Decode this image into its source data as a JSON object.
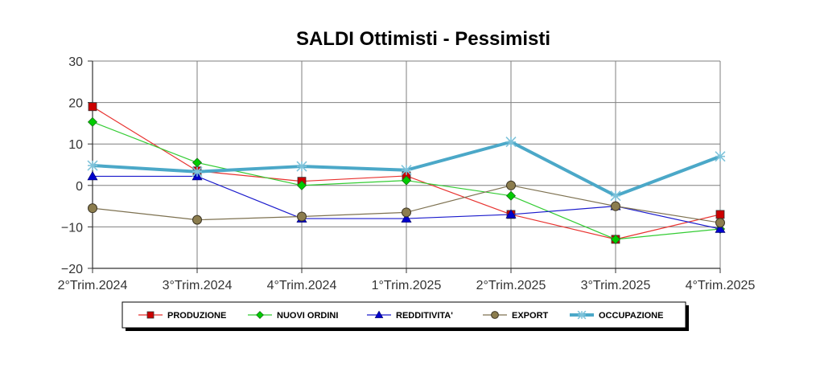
{
  "chart_data": {
    "type": "line",
    "title": "SALDI Ottimisti - Pessimisti",
    "categories": [
      "2°Trim.2024",
      "3°Trim.2024",
      "4°Trim.2024",
      "1°Trim.2025",
      "2°Trim.2025",
      "3°Trim.2025",
      "4°Trim.2025"
    ],
    "ylim": [
      -20,
      30
    ],
    "yticks": [
      30,
      20,
      10,
      0,
      -10,
      -20
    ],
    "ytick_labels": [
      "30",
      "20",
      "10",
      "0",
      "−10",
      "−20"
    ],
    "grid": true,
    "legend_position": "bottom",
    "series": [
      {
        "name": "PRODUZIONE",
        "values": [
          19,
          3.5,
          1,
          2.3,
          -7,
          -13,
          -7
        ],
        "color": "#e8322f",
        "marker": "square",
        "marker_color": "#cc0000"
      },
      {
        "name": "NUOVI ORDINI",
        "values": [
          15.3,
          5.5,
          0,
          1.2,
          -2.5,
          -13,
          -10.5
        ],
        "color": "#33cc33",
        "marker": "diamond",
        "marker_color": "#00cc00"
      },
      {
        "name": "REDDITIVITA'",
        "values": [
          2.2,
          2.2,
          -8,
          -8,
          -7,
          -5,
          -10.5
        ],
        "color": "#1a1acc",
        "marker": "triangle",
        "marker_color": "#0000cc"
      },
      {
        "name": "EXPORT",
        "values": [
          -5.5,
          -8.3,
          -7.5,
          -6.5,
          0,
          -5,
          -9
        ],
        "color": "#7d7150",
        "marker": "circle",
        "marker_color": "#8c7d4e"
      },
      {
        "name": "OCCUPAZIONE",
        "values": [
          4.8,
          3.3,
          4.6,
          3.7,
          10.5,
          -2.5,
          7
        ],
        "color": "#4ba8c8",
        "marker": "star",
        "marker_color": "#7fc3da",
        "thick": true
      }
    ]
  }
}
